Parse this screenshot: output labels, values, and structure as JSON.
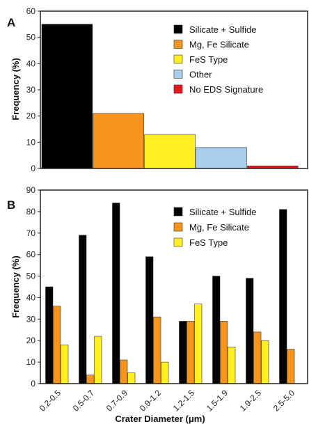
{
  "chart_data": [
    {
      "type": "bar",
      "panel_label": "A",
      "ylabel": "Frequency (%)",
      "xlabel": "",
      "ylim": [
        0,
        60
      ],
      "yticks": [
        0,
        10,
        20,
        30,
        40,
        50,
        60
      ],
      "categories": [
        "Silicate + Sulfide",
        "Mg, Fe Silicate",
        "FeS Type",
        "Other",
        "No EDS Signature"
      ],
      "values": [
        55,
        21,
        13,
        8,
        1
      ],
      "colors": [
        "#000000",
        "#f7941d",
        "#ffef24",
        "#a9cdec",
        "#e4161c"
      ],
      "legend": {
        "position": "top-right",
        "entries": [
          {
            "label": "Silicate + Sulfide",
            "color": "#000000"
          },
          {
            "label": "Mg, Fe Silicate",
            "color": "#f7941d"
          },
          {
            "label": "FeS Type",
            "color": "#ffef24"
          },
          {
            "label": "Other",
            "color": "#a9cdec"
          },
          {
            "label": "No EDS Signature",
            "color": "#e4161c"
          }
        ]
      }
    },
    {
      "type": "bar",
      "panel_label": "B",
      "ylabel": "Frequency (%)",
      "xlabel": "Crater Diameter (μm)",
      "ylim": [
        0,
        90
      ],
      "yticks": [
        0,
        10,
        20,
        30,
        40,
        50,
        60,
        70,
        80,
        90
      ],
      "categories": [
        "0.2-0.5",
        "0.5-0.7",
        "0.7-0.9",
        "0.9-1.2",
        "1.2-1.5",
        "1.5-1.9",
        "1.9-2.5",
        "2.5-5.0"
      ],
      "series": [
        {
          "name": "Silicate + Sulfide",
          "color": "#000000",
          "values": [
            45,
            69,
            84,
            59,
            29,
            50,
            49,
            81
          ]
        },
        {
          "name": "Mg, Fe Silicate",
          "color": "#f7941d",
          "values": [
            36,
            4,
            11,
            31,
            29,
            29,
            24,
            16
          ]
        },
        {
          "name": "FeS Type",
          "color": "#ffef24",
          "values": [
            18,
            22,
            5,
            10,
            37,
            17,
            20,
            0
          ]
        }
      ],
      "legend": {
        "position": "top-right"
      }
    }
  ]
}
